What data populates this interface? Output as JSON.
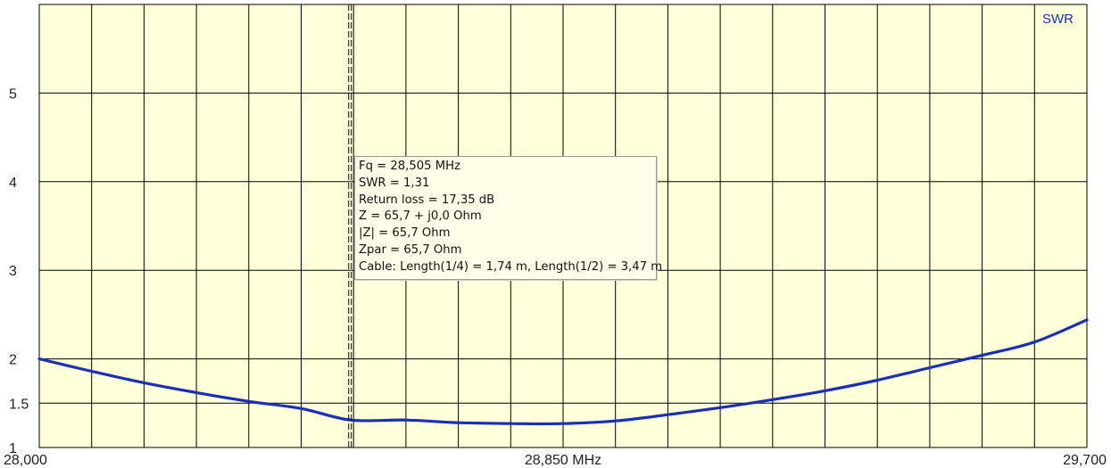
{
  "chart_data": {
    "type": "line",
    "series_label": "SWR",
    "x_unit": "MHz",
    "x_range": [
      28.0,
      29.7
    ],
    "x_tick_labels": [
      {
        "x": 28.0,
        "label": "28,000"
      },
      {
        "x": 28.85,
        "label": "28,850 MHz"
      },
      {
        "x": 29.7,
        "label": "29,700"
      }
    ],
    "y_range": [
      1,
      6
    ],
    "y_tick_labels": [
      {
        "y": 1,
        "label": "1"
      },
      {
        "y": 1.5,
        "label": "1.5"
      },
      {
        "y": 2,
        "label": "2"
      },
      {
        "y": 3,
        "label": "3"
      },
      {
        "y": 4,
        "label": "4"
      },
      {
        "y": 5,
        "label": "5"
      }
    ],
    "y_gridlines": [
      1.5,
      2,
      3,
      4,
      5
    ],
    "x_gridline_count": 20,
    "grid": true,
    "series": [
      {
        "name": "SWR",
        "color": "#1a2fb8",
        "x": [
          28.0,
          28.085,
          28.17,
          28.255,
          28.34,
          28.425,
          28.505,
          28.595,
          28.68,
          28.765,
          28.85,
          28.935,
          29.02,
          29.105,
          29.19,
          29.275,
          29.36,
          29.445,
          29.53,
          29.615,
          29.7
        ],
        "y": [
          2.0,
          1.86,
          1.73,
          1.62,
          1.52,
          1.44,
          1.31,
          1.31,
          1.28,
          1.27,
          1.27,
          1.3,
          1.37,
          1.45,
          1.54,
          1.64,
          1.76,
          1.9,
          2.04,
          2.19,
          2.44
        ]
      }
    ],
    "marker": {
      "x": 28.505,
      "lines": [
        "Fq = 28,505 MHz",
        "SWR = 1,31",
        "Return loss = 17,35 dB",
        "Z = 65,7 + j0,0 Ohm",
        "|Z| = 65,7 Ohm",
        "Zpar = 65,7 Ohm",
        "Cable: Length(1/4) = 1,74 m, Length(1/2) = 3,47 m"
      ]
    }
  },
  "colors": {
    "plot_background": "#ffffd9",
    "grid": "#000000",
    "curve": "#1a2fb8",
    "text": "#222222"
  }
}
